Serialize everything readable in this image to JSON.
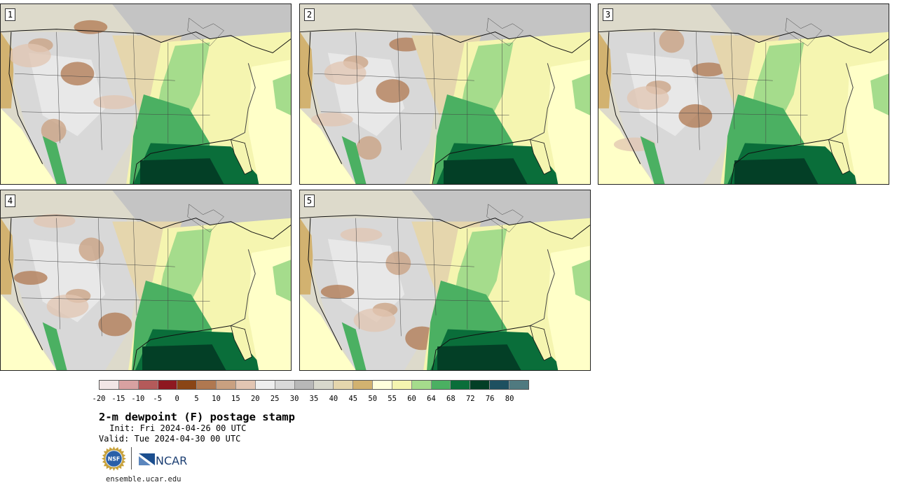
{
  "panels": [
    {
      "number": "1"
    },
    {
      "number": "2"
    },
    {
      "number": "3"
    },
    {
      "number": "4"
    },
    {
      "number": "5"
    }
  ],
  "colorbar": {
    "colors": [
      "#f2e6e6",
      "#d8a1a1",
      "#b45a5a",
      "#8e1820",
      "#8a4515",
      "#b07850",
      "#c9a080",
      "#e2c5b2",
      "#eeeeee",
      "#d9d9d9",
      "#b8b8b8",
      "#d8d8cc",
      "#e5d6ad",
      "#d2b270",
      "#ffffdc",
      "#f5f5b0",
      "#a5dc8c",
      "#4bb062",
      "#0a6e3a",
      "#033f26",
      "#1e5060",
      "#507a80"
    ],
    "tick_labels": [
      "-20",
      "-15",
      "-10",
      "-5",
      "0",
      "5",
      "10",
      "15",
      "20",
      "25",
      "30",
      "35",
      "40",
      "45",
      "50",
      "55",
      "60",
      "64",
      "68",
      "72",
      "76",
      "80"
    ]
  },
  "title": "2-m dewpoint (F) postage stamp",
  "init_line": " Init: Fri 2024-04-26 00 UTC",
  "valid_line": "Valid: Tue 2024-04-30 00 UTC",
  "logos": {
    "nsf": "NSF",
    "ncar": "NCAR"
  },
  "website": "ensemble.ucar.edu"
}
